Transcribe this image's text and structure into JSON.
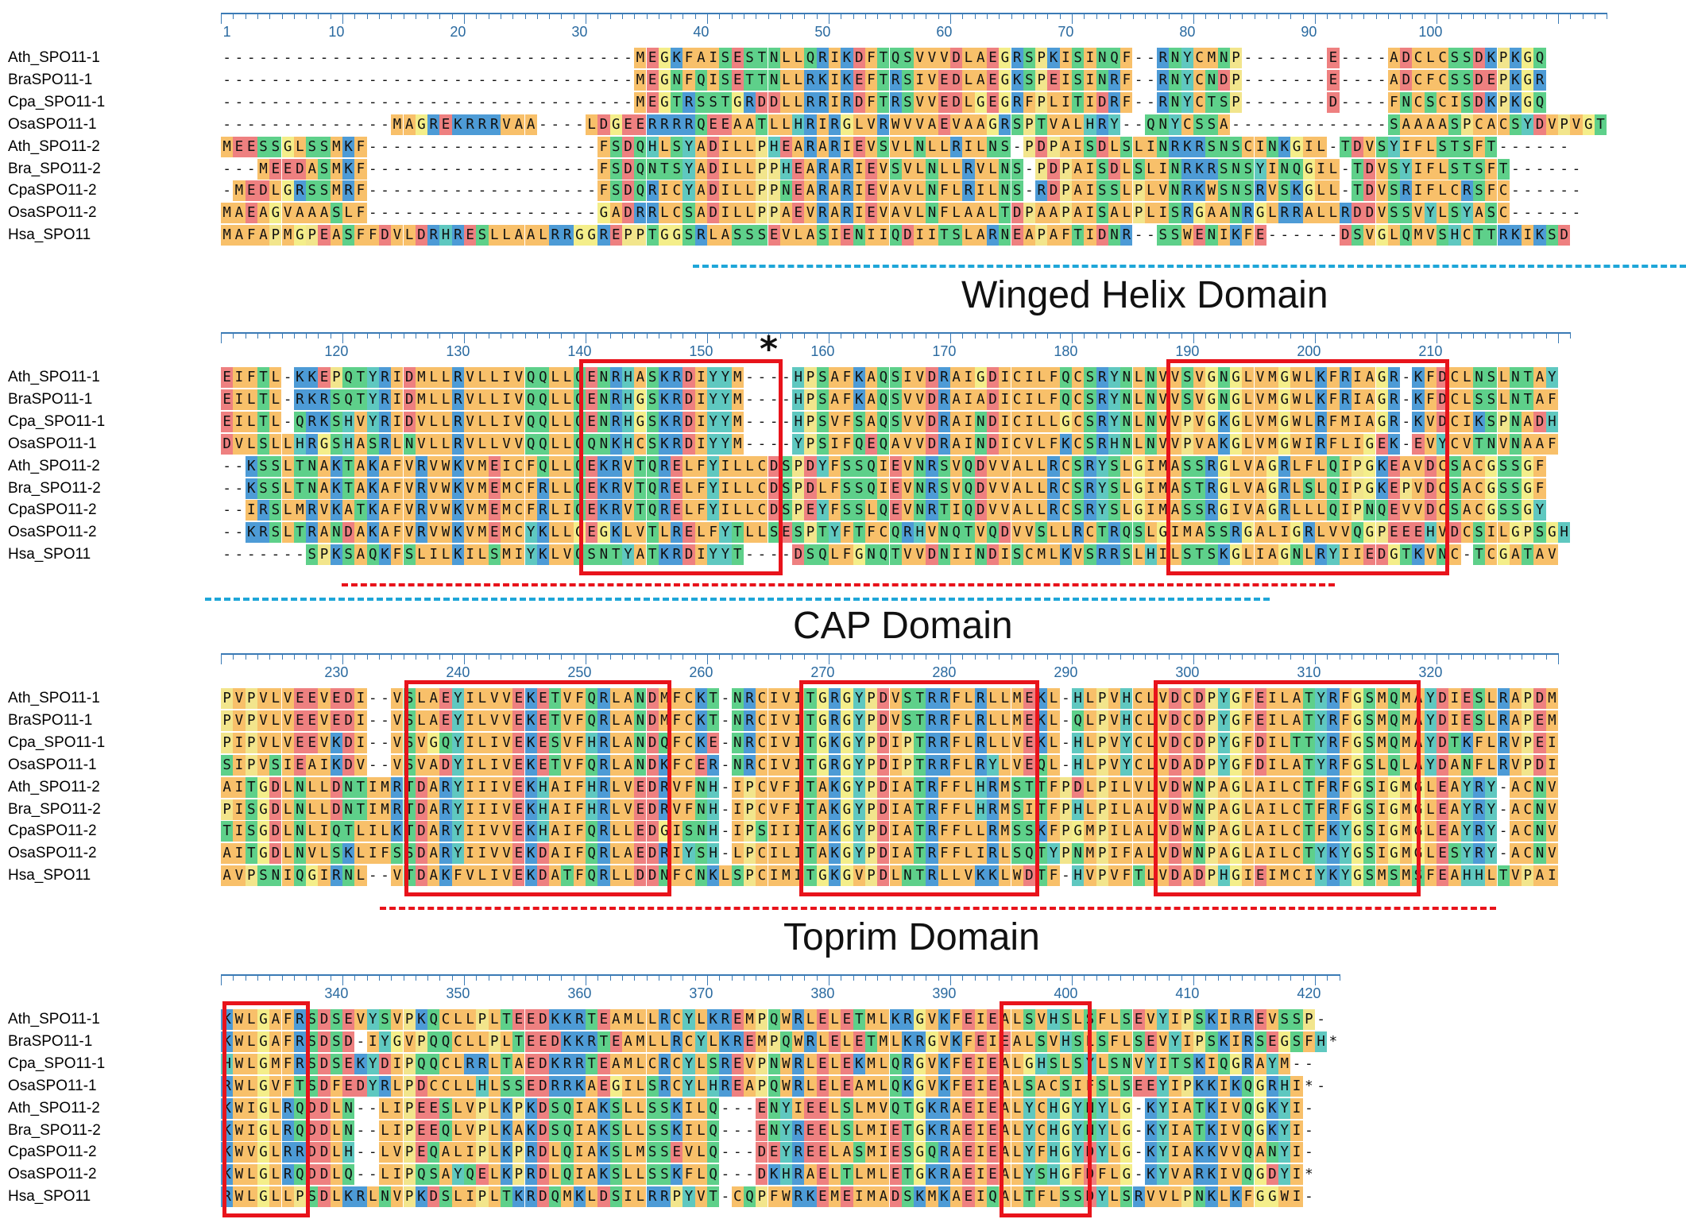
{
  "blocks": [
    {
      "id": "block1",
      "ruler": [
        "1",
        "10",
        "20",
        "30",
        "40",
        "50",
        "60",
        "70",
        "80",
        "90",
        "100"
      ],
      "names": [
        "Ath_SPO11-1",
        "BraSPO11-1",
        "Cpa_SPO11-1",
        "OsaSPO11-1",
        "Ath_SPO11-2",
        "Bra_SPO11-2",
        "CpaSPO11-2",
        "OsaSPO11-2",
        "Hsa_SPO11"
      ],
      "seqs": [
        "----------------------------------MEGKFAISESTNLLQRIKDFTQSVVVDLAEGRSPKISINQF--RNYCMNP-------E----ADCLCSSDKPKGQ",
        "----------------------------------MEGNFQISETTNLLRKIKEFTRSIVEDLAEGKSPEISINRF--RNYCNDP-------E----ADCFCSSDEPKGR",
        "----------------------------------MEGTRSSTGRDDLLRRIRDFTRSVVEDLGEGRFPLITIDRF--RNYCTSP-------D----FNCSCISDKPKGQ",
        "--------------MAGREKRRRVAA----LDGEERRRRQEEAATLLHRIRGLVRWVVAEVAAGRSPTVALHRY--QNYCSSA-------------SAAAASPCACSYDVPVGT",
        "MEESSGLSSMKF-------------------FSDQHLSYADILLPHEARARIEVSVLNLLRILNS-PDPAISDLSLINRKRSNSCINKGIL-TDVSYIFLSTSFT------",
        "---MEEDASMKF-------------------FSDQNTSYADILLPPHEARARIEVSVLNLLRVLNS-PDPAISDLSLINRKRSNSYINQGIL-TDVSYIFLSTSFT------",
        "-MEDLGRSSMRF-------------------FSDQRICYADILLPPNEARARIEVAVLNFLRILNS-RDPAISSLPLVNRKWSNSRVSKGLL-TDVSRIFLCRSFC------",
        "MAEAGVAAASLF-------------------GADRRLCSADILLPPAEVRARIEVAVLNFLAALTDPAAPAISALPLISRGAANRGLRRALLRDDVSSVYLSYASC------",
        "MAFAPMGPEASFFDVLDRHRESLLAALRRGGREPPTGGSRLASSSEVLASIENIIQDIITSLARNEAPAFTIDNR--SSWENIKFE------DSVGLQMVSHCTTRKIKSD"
      ]
    },
    {
      "id": "block2",
      "ruler": [
        "120",
        "130",
        "140",
        "150",
        "160",
        "170",
        "180",
        "190",
        "200",
        "210"
      ],
      "names": [
        "Ath_SPO11-1",
        "BraSPO11-1",
        "Cpa_SPO11-1",
        "OsaSPO11-1",
        "Ath_SPO11-2",
        "Bra_SPO11-2",
        "CpaSPO11-2",
        "OsaSPO11-2",
        "Hsa_SPO11"
      ],
      "seqs": [
        "EIFTL-KKEPQTYRIDMLLRVLLIVQQLLQENRHASKRDIYYM----HPSAFKAQSIVDRAIGDICILFQCSRYNLNVVSVGNGLVMGWLKFRIAGR-KFDCLNSLNTAY",
        "EILTL-RKRSQTYRIDMLLRVLLIVQQLLQENRHGSKRDIYYM----HPSAFKAQSVVDRAIADICILFQCSRYNLNVVSVGNGLVMGWLKFRIAGR-KFDCLSSLNTAF",
        "EILTL-QRKSHVYRIDVLLRVLLIVQQLLQENRHGSKRDIYYM----HPSVFSAQSVVDRAINDICILLGCSRYNLNVVPVGKGLVMGWLRFMIAGR-KVDCIKSPNADH",
        "DVLSLLHRGSHASRLNVLLRVLLVVQQLLQQNKHCSKRDIYYM----YPSIFQEQAVVDRAINDICVLFKCSRHNLNVVPVAKGLVMGWIRFLIGEK-EVYCVTNVNAAF",
        "--KSSLTNAKTAKAFVRVWKVMEICFQLLQEKRVTQRELFYILLCDSPDYFSSQIEVNRSVQDVVALLRCSRYSLGIMASSRGLVAGRLFLQIPGKEAVDCSACGSSGF",
        "--KSSLTNAKTAKAFVRVWKVMEMCFRLLQEKRVTQRELFYILLCDSPDLFSSQIEVNRSVQDVVALLRCSRYSLGIMASTRGLVAGRLSLQIPGKEPVDCSACGSSGF",
        "--IRSLMRVKATKAFVRVWKVMEMCFRLIQEKRVTQRELFYILLCDSPEYFSSLQEVNRTIQDVVALLRCSRYSLGIMASSRGIVAGRLLLQIPNQEVVDCSACGSSGY",
        "--KRSLTRANDAKAFVRVWKVMEMCYKLLGEGKLVTLRELFYTLLSESPTYFTFCQRHVNQTVQDVVSLLRCTRQSLGIMASSRGALIGRLVVQGPEEEHVDCSILGPSGH",
        "-------SPKSAQKFSLILKILSMIYKLVQSNTYATKRDIYYT----DSQLFGNQTVVDNIINDISCMLKVSRRSLHILSTSKGLIAGNLRYIIEDGTKVNC-TCGATAV"
      ]
    },
    {
      "id": "block3",
      "ruler": [
        "230",
        "240",
        "250",
        "260",
        "270",
        "280",
        "290",
        "300",
        "310",
        "320"
      ],
      "names": [
        "Ath_SPO11-1",
        "BraSPO11-1",
        "Cpa_SPO11-1",
        "OsaSPO11-1",
        "Ath_SPO11-2",
        "Bra_SPO11-2",
        "CpaSPO11-2",
        "OsaSPO11-2",
        "Hsa_SPO11"
      ],
      "seqs": [
        "PVPVLVEEVEDI--VSLAEYILVVEKETVFQRLANDMFCKT-NRCIVITGRGYPDVSTRRFLRLLMEKL-HLPVHCLVDCDPYGFEILATYRFGSMQMAYDIESLRAPDM",
        "PVPVLVEEVEDI--VSLAEYILVVEKETVFQRLANDMFCKT-NRCIVITGRGYPDVSTRRFLRLLMEKL-QLPVHCLVDCDPYGFEILATYRFGSMQMAYDIESLRAPEM",
        "PIPVLVEEVKDI--VSVGQYILIVEKESVFHRLANDQFCKE-NRCIVITGKGYPDIPTRRFLRLLVEKL-HLPVYCLVDCDPYGFDILTTYRFGSMQMAYDTKFLRVPEI",
        "SIPVSIEAIKDV--VSVADYILIVEKETVFQRLANDKFCER-NRCIVITGRGYPDIPTRRFLRYLVEQL-HLPVYCLVDADPYGFDILATYRFGSLQLAYDANFLRVPDI",
        "AITGDLNLLDNTIMRTDARYIIIVEKHAIFHRLVEDRVFNH-IPCVFITAKGYPDIATRFFLHRMSTTFPDLPILVLVDWNPAGLAILCTFRFGSIGMGLEAYRY-ACNV",
        "PISGDLNLLDNTIMRTDARYIIIVEKHAIFHRLVEDRVFNH-IPCVFITAKGYPDIATRFFLHRMSITFPHLPILALVDWNPAGLAILCTFRFGSIGMGLEAYRY-ACNV",
        "TISGDLNLIQTLILKTDARYIIVVEKHAIFQRLLEDGISNH-IPSIIITAKGYPDIATRFFLLRMSSKFPGMPILALVDWNPAGLAILCTFKYGSIGMGLEAYRY-ACNV",
        "AITGDLNVLSKLIFSSDARYIIVVEKDAIFQRLAEDRIYSH-LPCILITAKGYPDIATRFFLIRLSQTYPNMPIFALVDWNPAGLAILCTYKYGSIGMGLESYRY-ACNV",
        "AVPSNIQGIRNL--VTDAKFVLIVEKDATFQRLLDDNFCNKLSPCIMITGKGVPDLNTRLLVKKLWDTF-HVPVFTLVDADPHGIEIMCIYKYGSMSMSFEAHHLTVPAI"
      ]
    },
    {
      "id": "block4",
      "ruler": [
        "340",
        "350",
        "360",
        "370",
        "380",
        "390",
        "400",
        "410",
        "420"
      ],
      "names": [
        "Ath_SPO11-1",
        "BraSPO11-1",
        "Cpa_SPO11-1",
        "OsaSPO11-1",
        "Ath_SPO11-2",
        "Bra_SPO11-2",
        "CpaSPO11-2",
        "OsaSPO11-2",
        "Hsa_SPO11"
      ],
      "seqs": [
        "KWLGAFRSDSEVYSVPKQCLLPLTEEDKKRTEAMLLRCYLKREMPQWRLELETMLKRGVKFEIEALSVHSLSFLSEVYIPSKIRREVSSP-",
        "KWLGAFRSDSD-IYGVPQQCLLPLTEEDKKRTEAMLLRCYLKREMPQWRLELETMLKRGVKFEIEALSVHSLSFLSEVYIPSKIRSEGSFH*",
        "HWLGMFRSDSEKYDIPQQCLRRLTAEDKRRTEAMLCRCYLSREVPNWRLELEKMLQRGVKFEIEALGHSLSYLSNVYITSKIQGRAYM--",
        "RWLGVFTSDFEDYRLPDCCLLHLSSEDRRKAEGILSRCYLHREAPQWRLELEAMLQKGVKFEIEALSACSIFSLSEEYIPKKIKQGRHI*-",
        "KWIGLRQDDLN--LIPEESLVPLKPKDSQIAKSLLSSKILQ---ENYIEELSLMVQTGKRAEIEALYCHGYNYLG-KYIATKIVQGKYI-",
        "KWIGLRQDDLN--LIPEEQLVPLKAKDSQIAKSLLSSKILQ---ENYREELSLMIETGKRAEIEALYCHGYNYLG-KYIATKIVQGKYI-",
        "KWVGLRRDDLH--LVPEQALIPLKPRDLQIAKSLMSSEVLQ---DEYREELASMIESGQRAEIEALYFHGYDYLG-KYIAKKVVQANYI-",
        "KWLGLRQDDLQ--LIPQSAYQELKPRDLQIAKSLLSSKFLQ---DKHRAELTLMLETGKRAEIEALYSHGFDFLG-KYVARKIVQGDYI*",
        "RWLGLLPSDLKRLNVPKDSLIPLTKRDQMKLDSILRRPYVT-CQPFWRKEMEIMADSKMKAEIQALTFLSSDYLSRVVLPNKLKFGGWI-"
      ]
    }
  ],
  "annotations": {
    "star": "*",
    "domain_labels": [
      "Winged Helix Domain",
      "CAP Domain",
      "Toprim Domain"
    ]
  },
  "colors": {
    "hydrophobic": "#f8c06a",
    "positive": "#4d9bd6",
    "negative": "#ee8080",
    "polar": "#5ed08a",
    "glycine": "#f4ee8a",
    "proline": "#f2e58c",
    "aromatic": "#5fc8c0",
    "box": "#e8131b",
    "dash_blue": "#1fa6d8",
    "dash_red": "#e8131b"
  }
}
